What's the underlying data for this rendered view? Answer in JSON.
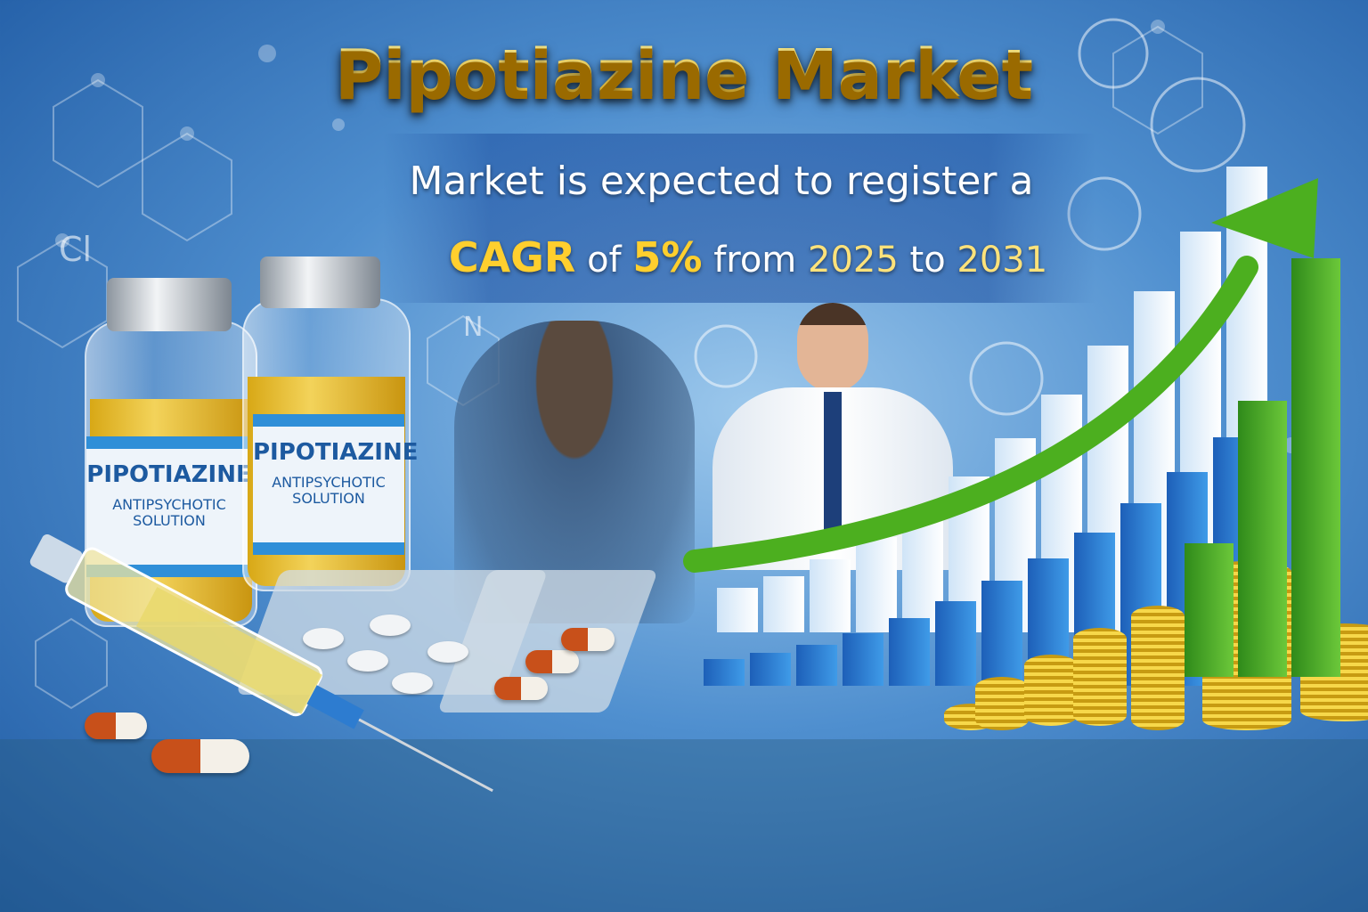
{
  "headline": {
    "title": "Pipotiazine Market"
  },
  "subtitle": {
    "line1": "Market is expected to register a",
    "cagr_label": "CAGR",
    "of": "of",
    "cagr_value": "5%",
    "from": "from",
    "start_year": "2025",
    "to": "to",
    "end_year": "2031"
  },
  "background_chem": {
    "chlorine": "Cl",
    "nitrogen": "N"
  },
  "vials": [
    {
      "name": "PIPOTIAZINE",
      "type": "ANTIPSYCHOTIC",
      "form": "SOLUTION"
    },
    {
      "name": "PIPOTIAZINE",
      "type": "ANTIPSYCHOTIC",
      "form": "SOLUTION"
    }
  ],
  "colors": {
    "title_gold": "#ffd43a",
    "background_blue": "#4f8fcf",
    "arrow_green": "#4caf1f",
    "bar_blue": "#2f7fd8",
    "coin_gold": "#f0c830"
  }
}
